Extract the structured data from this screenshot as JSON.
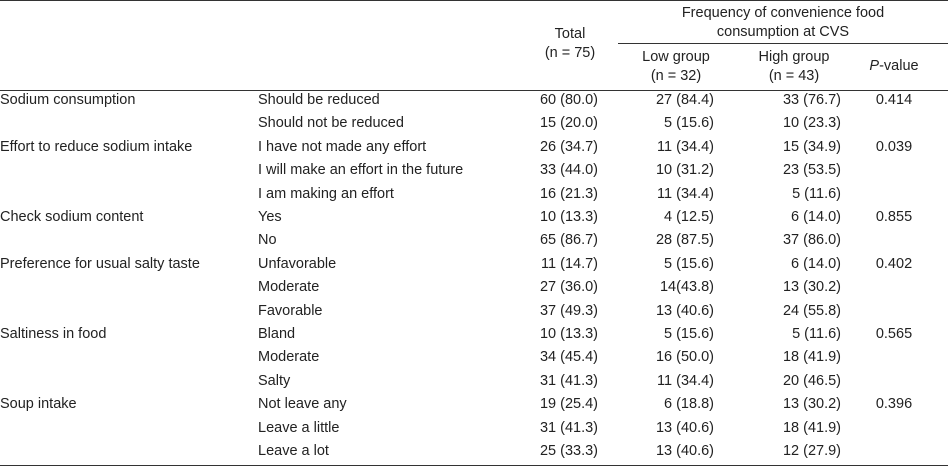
{
  "header": {
    "total_label": "Total",
    "total_n": "(n = 75)",
    "group_title_line1": "Frequency of convenience food",
    "group_title_line2": "consumption at CVS",
    "low_label": "Low group",
    "low_n": "(n = 32)",
    "high_label": "High group",
    "high_n": "(n = 43)",
    "p_italic": "P",
    "p_rest": "-value"
  },
  "rows": [
    {
      "variable": "Sodium consumption",
      "category": "Should be reduced",
      "total": "60 (80.0)",
      "low": "27 (84.4)",
      "high": "33 (76.7)",
      "p": "0.414"
    },
    {
      "variable": "",
      "category": "Should not be reduced",
      "total": "15 (20.0)",
      "low": "5 (15.6)",
      "high": "10 (23.3)",
      "p": ""
    },
    {
      "variable": "Effort to reduce sodium intake",
      "category": "I have not made any effort",
      "total": "26 (34.7)",
      "low": "11 (34.4)",
      "high": "15 (34.9)",
      "p": "0.039"
    },
    {
      "variable": "",
      "category": "I will make an effort in the future",
      "total": "33 (44.0)",
      "low": "10 (31.2)",
      "high": "23 (53.5)",
      "p": ""
    },
    {
      "variable": "",
      "category": "I am making an effort",
      "total": "16 (21.3)",
      "low": "11 (34.4)",
      "high": "5 (11.6)",
      "p": ""
    },
    {
      "variable": "Check sodium content",
      "category": "Yes",
      "total": "10 (13.3)",
      "low": "4 (12.5)",
      "high": "6 (14.0)",
      "p": "0.855"
    },
    {
      "variable": "",
      "category": "No",
      "total": "65 (86.7)",
      "low": "28 (87.5)",
      "high": "37 (86.0)",
      "p": ""
    },
    {
      "variable": "Preference for usual salty taste",
      "category": "Unfavorable",
      "total": "11 (14.7)",
      "low": "5 (15.6)",
      "high": "6 (14.0)",
      "p": "0.402"
    },
    {
      "variable": "",
      "category": "Moderate",
      "total": "27 (36.0)",
      "low": "14(43.8)",
      "high": "13 (30.2)",
      "p": ""
    },
    {
      "variable": "",
      "category": "Favorable",
      "total": "37 (49.3)",
      "low": "13 (40.6)",
      "high": "24 (55.8)",
      "p": ""
    },
    {
      "variable": "Saltiness in food",
      "category": "Bland",
      "total": "10 (13.3)",
      "low": "5 (15.6)",
      "high": "5 (11.6)",
      "p": "0.565"
    },
    {
      "variable": "",
      "category": "Moderate",
      "total": "34 (45.4)",
      "low": "16 (50.0)",
      "high": "18 (41.9)",
      "p": ""
    },
    {
      "variable": "",
      "category": "Salty",
      "total": "31 (41.3)",
      "low": "11 (34.4)",
      "high": "20 (46.5)",
      "p": ""
    },
    {
      "variable": "Soup intake",
      "category": "Not leave any",
      "total": "19 (25.4)",
      "low": "6 (18.8)",
      "high": "13 (30.2)",
      "p": "0.396"
    },
    {
      "variable": "",
      "category": "Leave a little",
      "total": "31 (41.3)",
      "low": "13 (40.6)",
      "high": "18 (41.9)",
      "p": ""
    },
    {
      "variable": "",
      "category": "Leave a lot",
      "total": "25 (33.3)",
      "low": "13 (40.6)",
      "high": "12 (27.9)",
      "p": ""
    }
  ]
}
